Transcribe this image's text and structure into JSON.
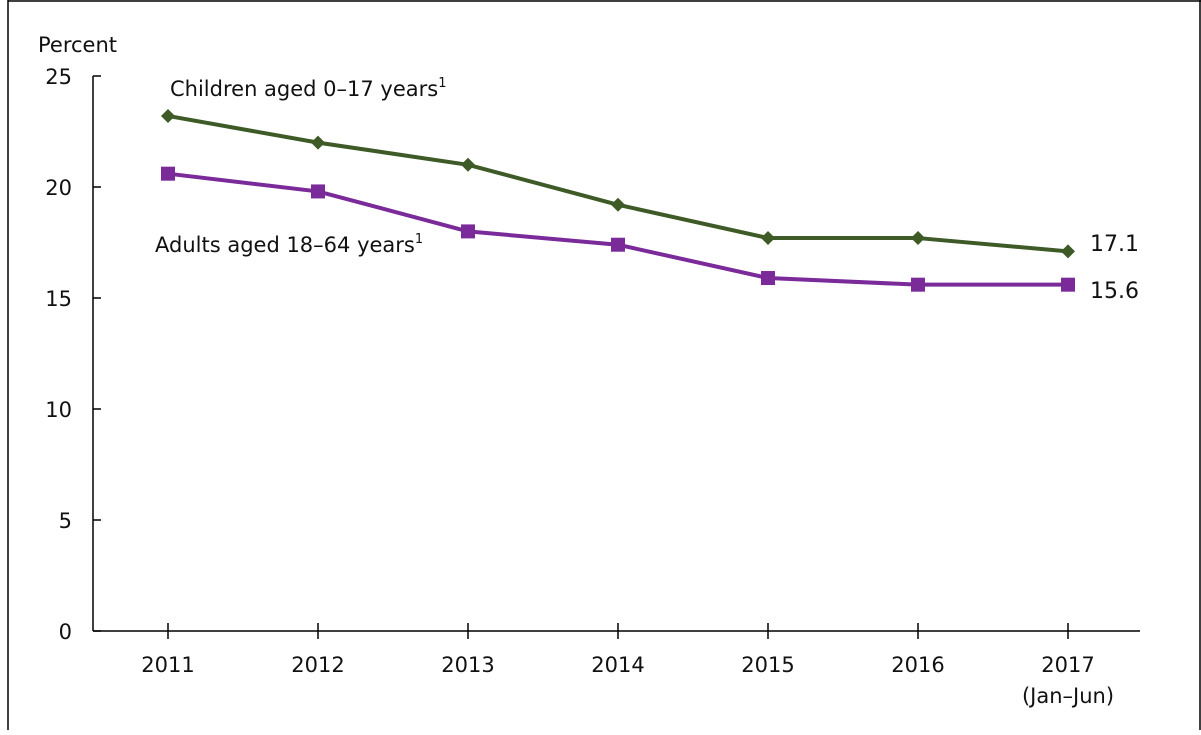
{
  "chart_data": {
    "type": "line",
    "ylabel": "Percent",
    "xlabel": "",
    "ylim": [
      0,
      25
    ],
    "yticks": [
      0,
      5,
      10,
      15,
      20,
      25
    ],
    "categories": [
      "2011",
      "2012",
      "2013",
      "2014",
      "2015",
      "2016",
      "2017"
    ],
    "category_sublabels": [
      "",
      "",
      "",
      "",
      "",
      "",
      "(Jan–Jun)"
    ],
    "grid": false,
    "series": [
      {
        "name": "Children aged 0–17 years",
        "footnote": "1",
        "marker": "diamond",
        "color": "#3d5a27",
        "values": [
          23.2,
          22.0,
          21.0,
          19.2,
          17.7,
          17.7,
          17.1
        ],
        "end_label": "17.1"
      },
      {
        "name": "Adults aged 18–64 years",
        "footnote": "1",
        "marker": "square",
        "color": "#7b2a9a",
        "values": [
          20.6,
          19.8,
          18.0,
          17.4,
          15.9,
          15.6,
          15.6
        ],
        "end_label": "15.6"
      }
    ]
  }
}
